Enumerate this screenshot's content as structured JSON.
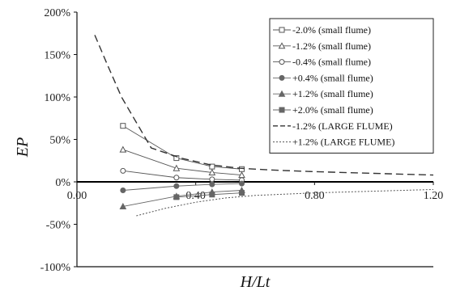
{
  "chart_data": {
    "type": "line",
    "xlabel": "H/Lt",
    "ylabel": "EP",
    "xlim": [
      0,
      1.2
    ],
    "ylim": [
      -100,
      200
    ],
    "x_ticks": [
      "0.00",
      "0.40",
      "0.80",
      "1.20"
    ],
    "x_tick_values": [
      0,
      0.4,
      0.8,
      1.2
    ],
    "y_ticks": [
      "200%",
      "150%",
      "100%",
      "50%",
      "0%",
      "-50%",
      "-100%"
    ],
    "y_tick_values": [
      200,
      150,
      100,
      50,
      0,
      -50,
      -100
    ],
    "grid": false,
    "legend_position": "top-right",
    "series": [
      {
        "name": "-2.0% (small flume)",
        "marker": "square-open",
        "color": "#555555",
        "x": [
          0.155,
          0.335,
          0.455,
          0.555
        ],
        "y": [
          66,
          28,
          18,
          15
        ]
      },
      {
        "name": "-1.2% (small flume)",
        "marker": "triangle-open",
        "color": "#555555",
        "x": [
          0.155,
          0.335,
          0.455,
          0.555
        ],
        "y": [
          38,
          16,
          11,
          8
        ]
      },
      {
        "name": "-0.4% (small flume)",
        "marker": "circle-open",
        "color": "#555555",
        "x": [
          0.155,
          0.335,
          0.455,
          0.555
        ],
        "y": [
          13,
          5,
          3,
          2
        ]
      },
      {
        "name": "+0.4% (small flume)",
        "marker": "circle-filled",
        "color": "#666666",
        "x": [
          0.155,
          0.335,
          0.455,
          0.555
        ],
        "y": [
          -10,
          -5,
          -3,
          -2
        ]
      },
      {
        "name": "+1.2% (small flume)",
        "marker": "triangle-filled",
        "color": "#666666",
        "x": [
          0.155,
          0.335,
          0.455,
          0.555
        ],
        "y": [
          -29,
          -17,
          -12,
          -10
        ]
      },
      {
        "name": "+2.0% (small flume)",
        "marker": "square-filled",
        "color": "#666666",
        "x": [
          0.335,
          0.455,
          0.555
        ],
        "y": [
          -18,
          -15,
          -13
        ]
      },
      {
        "name": "-1.2% (LARGE FLUME)",
        "marker": "none",
        "line": "dashed",
        "color": "#333333",
        "x": [
          0.06,
          0.1,
          0.15,
          0.2,
          0.25,
          0.35,
          0.45,
          0.55,
          0.65,
          0.8,
          1.0,
          1.2
        ],
        "y": [
          173,
          140,
          100,
          70,
          40,
          28,
          20,
          16,
          14,
          12,
          10,
          8
        ]
      },
      {
        "name": "+1.2% (LARGE FLUME)",
        "marker": "none",
        "line": "dotted",
        "color": "#555555",
        "x": [
          0.2,
          0.3,
          0.4,
          0.5,
          0.6,
          0.8,
          1.0,
          1.2
        ],
        "y": [
          -40,
          -31,
          -24,
          -19,
          -16,
          -13,
          -11,
          -9
        ]
      }
    ]
  }
}
